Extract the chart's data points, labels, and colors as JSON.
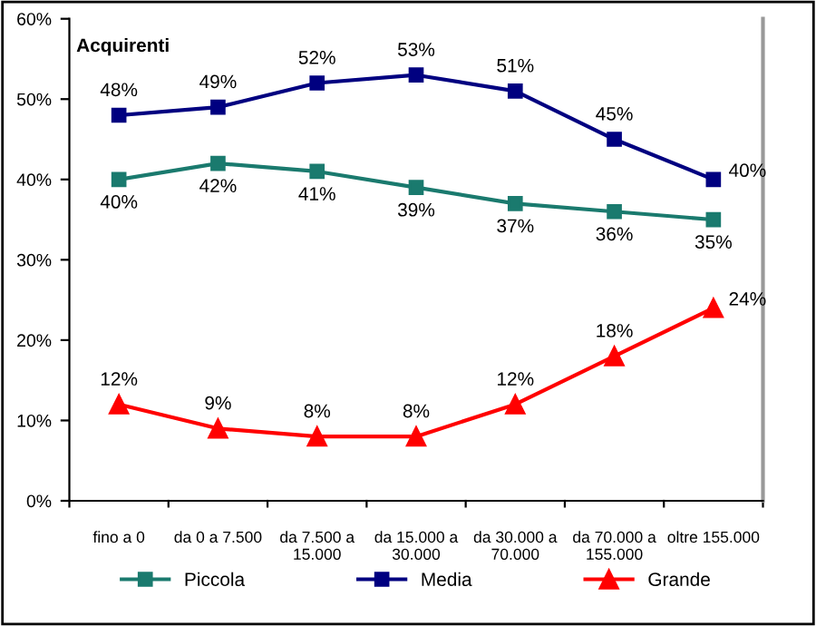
{
  "chart_data": {
    "type": "line",
    "title": "Acquirenti",
    "categories": [
      "fino a 0",
      "da 0 a 7.500",
      "da 7.500 a\n15.000",
      "da 15.000 a\n30.000",
      "da 30.000 a\n70.000",
      "da 70.000 a\n155.000",
      "oltre 155.000"
    ],
    "series": [
      {
        "name": "Piccola",
        "color": "#1a7a6e",
        "marker": "square",
        "values": [
          40,
          42,
          41,
          39,
          37,
          36,
          35
        ],
        "value_labels": [
          "40%",
          "42%",
          "41%",
          "39%",
          "37%",
          "36%",
          "35%"
        ]
      },
      {
        "name": "Media",
        "color": "#000080",
        "marker": "square",
        "values": [
          48,
          49,
          52,
          53,
          51,
          45,
          40
        ],
        "value_labels": [
          "48%",
          "49%",
          "52%",
          "53%",
          "51%",
          "45%",
          "40%"
        ]
      },
      {
        "name": "Grande",
        "color": "#ff0000",
        "marker": "triangle",
        "values": [
          12,
          9,
          8,
          8,
          12,
          18,
          24
        ],
        "value_labels": [
          "12%",
          "9%",
          "8%",
          "8%",
          "12%",
          "18%",
          "24%"
        ]
      }
    ],
    "ylim": [
      0,
      60
    ],
    "yticks": [
      {
        "value": 0,
        "label": "0%"
      },
      {
        "value": 10,
        "label": "10%"
      },
      {
        "value": 20,
        "label": "20%"
      },
      {
        "value": 30,
        "label": "30%"
      },
      {
        "value": 40,
        "label": "40%"
      },
      {
        "value": 50,
        "label": "50%"
      },
      {
        "value": 60,
        "label": "60%"
      }
    ],
    "grid": false,
    "legend": "bottom",
    "line_style": "solid"
  }
}
